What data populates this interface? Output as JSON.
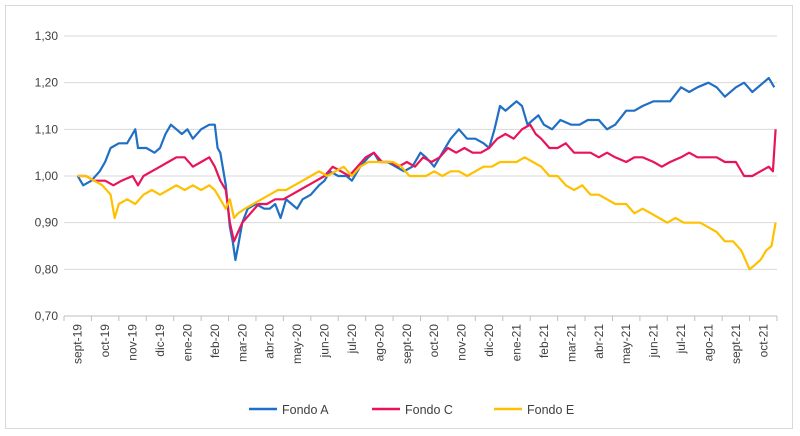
{
  "chart_data": {
    "type": "line",
    "title": "",
    "xlabel": "",
    "ylabel": "",
    "ylim": [
      0.7,
      1.3
    ],
    "yticks": [
      "0,70",
      "0,80",
      "0,90",
      "1,00",
      "1,10",
      "1,20",
      "1,30"
    ],
    "ytick_values": [
      0.7,
      0.8,
      0.9,
      1.0,
      1.1,
      1.2,
      1.3
    ],
    "categories": [
      "sept-19",
      "oct-19",
      "nov-19",
      "dic-19",
      "ene-20",
      "feb-20",
      "mar-20",
      "abr-20",
      "may-20",
      "jun-20",
      "jul-20",
      "ago-20",
      "sept-20",
      "oct-20",
      "nov-20",
      "dic-20",
      "ene-21",
      "feb-21",
      "mar-21",
      "abr-21",
      "may-21",
      "jun-21",
      "jul-21",
      "ago-21",
      "sept-21",
      "oct-21"
    ],
    "grid": true,
    "legend": "bottom",
    "series": [
      {
        "name": "Fondo A",
        "color": "#1f6fc5",
        "points": [
          [
            0,
            1.0
          ],
          [
            0.2,
            0.98
          ],
          [
            0.5,
            0.99
          ],
          [
            0.8,
            1.01
          ],
          [
            1.0,
            1.03
          ],
          [
            1.2,
            1.06
          ],
          [
            1.5,
            1.07
          ],
          [
            1.8,
            1.07
          ],
          [
            2.0,
            1.09
          ],
          [
            2.1,
            1.1
          ],
          [
            2.2,
            1.06
          ],
          [
            2.5,
            1.06
          ],
          [
            2.8,
            1.05
          ],
          [
            3.0,
            1.06
          ],
          [
            3.2,
            1.09
          ],
          [
            3.4,
            1.11
          ],
          [
            3.6,
            1.1
          ],
          [
            3.8,
            1.09
          ],
          [
            4.0,
            1.1
          ],
          [
            4.2,
            1.08
          ],
          [
            4.5,
            1.1
          ],
          [
            4.8,
            1.11
          ],
          [
            5.0,
            1.11
          ],
          [
            5.1,
            1.06
          ],
          [
            5.2,
            1.05
          ],
          [
            5.4,
            0.98
          ],
          [
            5.55,
            0.89
          ],
          [
            5.65,
            0.86
          ],
          [
            5.75,
            0.82
          ],
          [
            5.85,
            0.85
          ],
          [
            6.0,
            0.9
          ],
          [
            6.2,
            0.93
          ],
          [
            6.5,
            0.94
          ],
          [
            6.8,
            0.93
          ],
          [
            7.0,
            0.93
          ],
          [
            7.2,
            0.94
          ],
          [
            7.4,
            0.91
          ],
          [
            7.6,
            0.95
          ],
          [
            7.8,
            0.94
          ],
          [
            8.0,
            0.93
          ],
          [
            8.2,
            0.95
          ],
          [
            8.5,
            0.96
          ],
          [
            8.8,
            0.98
          ],
          [
            9.0,
            0.99
          ],
          [
            9.2,
            1.01
          ],
          [
            9.5,
            1.0
          ],
          [
            9.8,
            1.0
          ],
          [
            10.0,
            0.99
          ],
          [
            10.3,
            1.02
          ],
          [
            10.6,
            1.04
          ],
          [
            10.8,
            1.05
          ],
          [
            11.0,
            1.03
          ],
          [
            11.3,
            1.03
          ],
          [
            11.6,
            1.02
          ],
          [
            11.9,
            1.01
          ],
          [
            12.2,
            1.02
          ],
          [
            12.5,
            1.05
          ],
          [
            12.7,
            1.04
          ],
          [
            13.0,
            1.02
          ],
          [
            13.3,
            1.05
          ],
          [
            13.6,
            1.08
          ],
          [
            13.9,
            1.1
          ],
          [
            14.2,
            1.08
          ],
          [
            14.5,
            1.08
          ],
          [
            14.8,
            1.07
          ],
          [
            15.0,
            1.06
          ],
          [
            15.2,
            1.1
          ],
          [
            15.4,
            1.15
          ],
          [
            15.6,
            1.14
          ],
          [
            15.8,
            1.15
          ],
          [
            16.0,
            1.16
          ],
          [
            16.2,
            1.15
          ],
          [
            16.4,
            1.11
          ],
          [
            16.6,
            1.12
          ],
          [
            16.8,
            1.13
          ],
          [
            17.0,
            1.11
          ],
          [
            17.3,
            1.1
          ],
          [
            17.6,
            1.12
          ],
          [
            18.0,
            1.11
          ],
          [
            18.3,
            1.11
          ],
          [
            18.6,
            1.12
          ],
          [
            19.0,
            1.12
          ],
          [
            19.3,
            1.1
          ],
          [
            19.6,
            1.11
          ],
          [
            20.0,
            1.14
          ],
          [
            20.3,
            1.14
          ],
          [
            20.6,
            1.15
          ],
          [
            21.0,
            1.16
          ],
          [
            21.3,
            1.16
          ],
          [
            21.6,
            1.16
          ],
          [
            22.0,
            1.19
          ],
          [
            22.3,
            1.18
          ],
          [
            22.6,
            1.19
          ],
          [
            23.0,
            1.2
          ],
          [
            23.3,
            1.19
          ],
          [
            23.6,
            1.17
          ],
          [
            24.0,
            1.19
          ],
          [
            24.3,
            1.2
          ],
          [
            24.6,
            1.18
          ],
          [
            25.0,
            1.2
          ],
          [
            25.2,
            1.21
          ],
          [
            25.4,
            1.19
          ]
        ]
      },
      {
        "name": "Fondo C",
        "color": "#e8135a",
        "points": [
          [
            0,
            1.0
          ],
          [
            0.3,
            1.0
          ],
          [
            0.6,
            0.99
          ],
          [
            1.0,
            0.99
          ],
          [
            1.3,
            0.98
          ],
          [
            1.6,
            0.99
          ],
          [
            2.0,
            1.0
          ],
          [
            2.2,
            0.98
          ],
          [
            2.4,
            1.0
          ],
          [
            2.7,
            1.01
          ],
          [
            3.0,
            1.02
          ],
          [
            3.3,
            1.03
          ],
          [
            3.6,
            1.04
          ],
          [
            3.9,
            1.04
          ],
          [
            4.2,
            1.02
          ],
          [
            4.5,
            1.03
          ],
          [
            4.8,
            1.04
          ],
          [
            5.0,
            1.02
          ],
          [
            5.2,
            0.99
          ],
          [
            5.4,
            0.97
          ],
          [
            5.55,
            0.9
          ],
          [
            5.7,
            0.86
          ],
          [
            5.85,
            0.88
          ],
          [
            6.0,
            0.9
          ],
          [
            6.3,
            0.92
          ],
          [
            6.6,
            0.94
          ],
          [
            6.9,
            0.94
          ],
          [
            7.2,
            0.95
          ],
          [
            7.5,
            0.95
          ],
          [
            7.8,
            0.96
          ],
          [
            8.1,
            0.97
          ],
          [
            8.4,
            0.98
          ],
          [
            8.7,
            0.99
          ],
          [
            9.0,
            1.0
          ],
          [
            9.3,
            1.02
          ],
          [
            9.6,
            1.01
          ],
          [
            9.9,
            1.0
          ],
          [
            10.2,
            1.02
          ],
          [
            10.5,
            1.04
          ],
          [
            10.8,
            1.05
          ],
          [
            11.1,
            1.03
          ],
          [
            11.4,
            1.03
          ],
          [
            11.7,
            1.02
          ],
          [
            12.0,
            1.03
          ],
          [
            12.3,
            1.02
          ],
          [
            12.6,
            1.04
          ],
          [
            12.9,
            1.03
          ],
          [
            13.2,
            1.04
          ],
          [
            13.5,
            1.06
          ],
          [
            13.8,
            1.05
          ],
          [
            14.1,
            1.06
          ],
          [
            14.4,
            1.05
          ],
          [
            14.7,
            1.05
          ],
          [
            15.0,
            1.06
          ],
          [
            15.3,
            1.08
          ],
          [
            15.6,
            1.09
          ],
          [
            15.9,
            1.08
          ],
          [
            16.2,
            1.1
          ],
          [
            16.5,
            1.11
          ],
          [
            16.7,
            1.09
          ],
          [
            16.9,
            1.08
          ],
          [
            17.2,
            1.06
          ],
          [
            17.5,
            1.06
          ],
          [
            17.8,
            1.07
          ],
          [
            18.1,
            1.05
          ],
          [
            18.4,
            1.05
          ],
          [
            18.7,
            1.05
          ],
          [
            19.0,
            1.04
          ],
          [
            19.3,
            1.05
          ],
          [
            19.6,
            1.04
          ],
          [
            20.0,
            1.03
          ],
          [
            20.3,
            1.04
          ],
          [
            20.6,
            1.04
          ],
          [
            21.0,
            1.03
          ],
          [
            21.3,
            1.02
          ],
          [
            21.6,
            1.03
          ],
          [
            22.0,
            1.04
          ],
          [
            22.3,
            1.05
          ],
          [
            22.6,
            1.04
          ],
          [
            23.0,
            1.04
          ],
          [
            23.3,
            1.04
          ],
          [
            23.6,
            1.03
          ],
          [
            24.0,
            1.03
          ],
          [
            24.3,
            1.0
          ],
          [
            24.6,
            1.0
          ],
          [
            24.9,
            1.01
          ],
          [
            25.2,
            1.02
          ],
          [
            25.35,
            1.01
          ],
          [
            25.45,
            1.1
          ]
        ]
      },
      {
        "name": "Fondo E",
        "color": "#ffc000",
        "points": [
          [
            0,
            1.0
          ],
          [
            0.3,
            1.0
          ],
          [
            0.6,
            0.99
          ],
          [
            0.9,
            0.98
          ],
          [
            1.2,
            0.96
          ],
          [
            1.35,
            0.91
          ],
          [
            1.5,
            0.94
          ],
          [
            1.8,
            0.95
          ],
          [
            2.1,
            0.94
          ],
          [
            2.4,
            0.96
          ],
          [
            2.7,
            0.97
          ],
          [
            3.0,
            0.96
          ],
          [
            3.3,
            0.97
          ],
          [
            3.6,
            0.98
          ],
          [
            3.9,
            0.97
          ],
          [
            4.2,
            0.98
          ],
          [
            4.5,
            0.97
          ],
          [
            4.8,
            0.98
          ],
          [
            5.0,
            0.97
          ],
          [
            5.2,
            0.95
          ],
          [
            5.4,
            0.93
          ],
          [
            5.55,
            0.95
          ],
          [
            5.7,
            0.91
          ],
          [
            5.85,
            0.92
          ],
          [
            6.1,
            0.93
          ],
          [
            6.4,
            0.94
          ],
          [
            6.7,
            0.95
          ],
          [
            7.0,
            0.96
          ],
          [
            7.3,
            0.97
          ],
          [
            7.6,
            0.97
          ],
          [
            7.9,
            0.98
          ],
          [
            8.2,
            0.99
          ],
          [
            8.5,
            1.0
          ],
          [
            8.8,
            1.01
          ],
          [
            9.1,
            1.0
          ],
          [
            9.4,
            1.01
          ],
          [
            9.7,
            1.02
          ],
          [
            10.0,
            1.0
          ],
          [
            10.3,
            1.02
          ],
          [
            10.6,
            1.03
          ],
          [
            10.9,
            1.03
          ],
          [
            11.2,
            1.03
          ],
          [
            11.5,
            1.03
          ],
          [
            11.8,
            1.02
          ],
          [
            12.1,
            1.0
          ],
          [
            12.4,
            1.0
          ],
          [
            12.7,
            1.0
          ],
          [
            13.0,
            1.01
          ],
          [
            13.3,
            1.0
          ],
          [
            13.6,
            1.01
          ],
          [
            13.9,
            1.01
          ],
          [
            14.2,
            1.0
          ],
          [
            14.5,
            1.01
          ],
          [
            14.8,
            1.02
          ],
          [
            15.1,
            1.02
          ],
          [
            15.4,
            1.03
          ],
          [
            15.7,
            1.03
          ],
          [
            16.0,
            1.03
          ],
          [
            16.3,
            1.04
          ],
          [
            16.6,
            1.03
          ],
          [
            16.9,
            1.02
          ],
          [
            17.2,
            1.0
          ],
          [
            17.5,
            1.0
          ],
          [
            17.8,
            0.98
          ],
          [
            18.1,
            0.97
          ],
          [
            18.4,
            0.98
          ],
          [
            18.7,
            0.96
          ],
          [
            19.0,
            0.96
          ],
          [
            19.3,
            0.95
          ],
          [
            19.6,
            0.94
          ],
          [
            20.0,
            0.94
          ],
          [
            20.3,
            0.92
          ],
          [
            20.6,
            0.93
          ],
          [
            20.9,
            0.92
          ],
          [
            21.2,
            0.91
          ],
          [
            21.5,
            0.9
          ],
          [
            21.8,
            0.91
          ],
          [
            22.1,
            0.9
          ],
          [
            22.4,
            0.9
          ],
          [
            22.7,
            0.9
          ],
          [
            23.0,
            0.89
          ],
          [
            23.3,
            0.88
          ],
          [
            23.6,
            0.86
          ],
          [
            23.9,
            0.86
          ],
          [
            24.2,
            0.84
          ],
          [
            24.5,
            0.8
          ],
          [
            24.7,
            0.81
          ],
          [
            24.9,
            0.82
          ],
          [
            25.1,
            0.84
          ],
          [
            25.3,
            0.85
          ],
          [
            25.45,
            0.9
          ]
        ]
      }
    ]
  }
}
